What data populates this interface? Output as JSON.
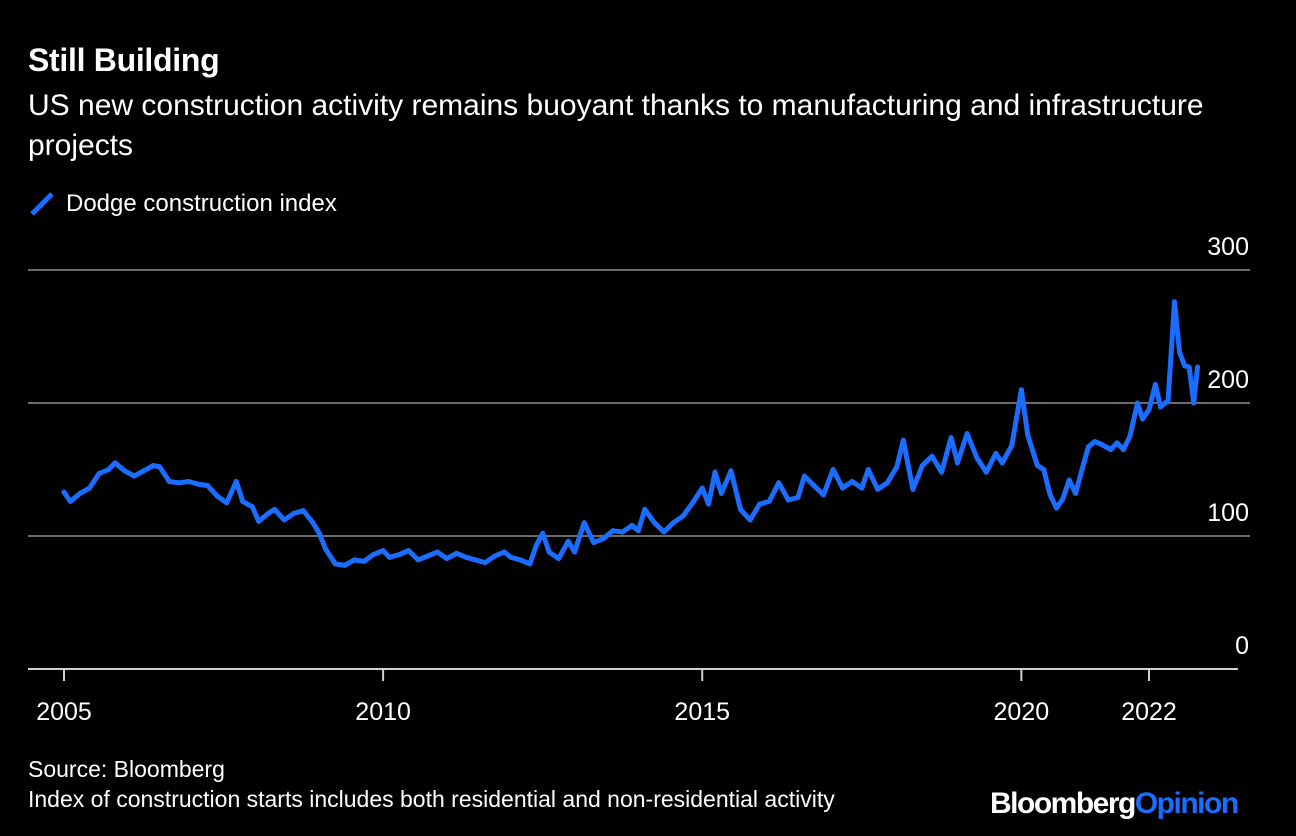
{
  "header": {
    "title": "Still Building",
    "subtitle": "US new construction activity remains buoyant thanks to manufacturing and infrastructure projects"
  },
  "footer": {
    "source": "Source: Bloomberg",
    "note": "Index of construction starts includes both residential and non-residential activity",
    "brand_primary": "Bloomberg",
    "brand_secondary": "Opinion"
  },
  "colors": {
    "background": "#000000",
    "series": "#1a6dff",
    "grid": "#6b6b6b",
    "text": "#ffffff"
  },
  "chart_data": {
    "type": "line",
    "title": "Still Building",
    "subtitle": "US new construction activity remains buoyant thanks to manufacturing and infrastructure projects",
    "xlabel": "",
    "ylabel": "",
    "x_ticks": [
      {
        "value": 2005,
        "label": "2005"
      },
      {
        "value": 2010,
        "label": "2010"
      },
      {
        "value": 2015,
        "label": "2015"
      },
      {
        "value": 2020,
        "label": "2020"
      },
      {
        "value": 2022,
        "label": "2022"
      }
    ],
    "y_ticks": [
      {
        "value": 0,
        "label": "0"
      },
      {
        "value": 100,
        "label": "100"
      },
      {
        "value": 200,
        "label": "200"
      },
      {
        "value": 300,
        "label": "300"
      }
    ],
    "xlim": [
      2004.4,
      2023.5
    ],
    "ylim": [
      0,
      300
    ],
    "grid": true,
    "legend_position": "top-left",
    "series": [
      {
        "name": "Dodge construction index",
        "color": "#1a6dff",
        "points": [
          [
            2005.0,
            133
          ],
          [
            2005.1,
            126
          ],
          [
            2005.25,
            132
          ],
          [
            2005.4,
            136
          ],
          [
            2005.55,
            147
          ],
          [
            2005.7,
            150
          ],
          [
            2005.8,
            155
          ],
          [
            2005.95,
            149
          ],
          [
            2006.1,
            145
          ],
          [
            2006.25,
            149
          ],
          [
            2006.4,
            153
          ],
          [
            2006.5,
            152
          ],
          [
            2006.65,
            141
          ],
          [
            2006.8,
            140
          ],
          [
            2006.95,
            141
          ],
          [
            2007.1,
            139
          ],
          [
            2007.25,
            138
          ],
          [
            2007.4,
            130
          ],
          [
            2007.55,
            125
          ],
          [
            2007.7,
            141
          ],
          [
            2007.8,
            126
          ],
          [
            2007.95,
            122
          ],
          [
            2008.05,
            111
          ],
          [
            2008.2,
            117
          ],
          [
            2008.3,
            120
          ],
          [
            2008.45,
            112
          ],
          [
            2008.6,
            117
          ],
          [
            2008.75,
            119
          ],
          [
            2008.9,
            110
          ],
          [
            2009.0,
            102
          ],
          [
            2009.1,
            90
          ],
          [
            2009.25,
            79
          ],
          [
            2009.4,
            78
          ],
          [
            2009.55,
            82
          ],
          [
            2009.7,
            81
          ],
          [
            2009.85,
            86
          ],
          [
            2010.0,
            89
          ],
          [
            2010.1,
            84
          ],
          [
            2010.25,
            86
          ],
          [
            2010.4,
            89
          ],
          [
            2010.55,
            82
          ],
          [
            2010.7,
            85
          ],
          [
            2010.85,
            88
          ],
          [
            2011.0,
            83
          ],
          [
            2011.15,
            87
          ],
          [
            2011.3,
            84
          ],
          [
            2011.45,
            82
          ],
          [
            2011.6,
            80
          ],
          [
            2011.75,
            85
          ],
          [
            2011.9,
            88
          ],
          [
            2012.0,
            84
          ],
          [
            2012.15,
            82
          ],
          [
            2012.3,
            79
          ],
          [
            2012.4,
            93
          ],
          [
            2012.5,
            102
          ],
          [
            2012.6,
            88
          ],
          [
            2012.75,
            83
          ],
          [
            2012.9,
            96
          ],
          [
            2013.0,
            88
          ],
          [
            2013.15,
            110
          ],
          [
            2013.3,
            95
          ],
          [
            2013.45,
            98
          ],
          [
            2013.6,
            104
          ],
          [
            2013.75,
            103
          ],
          [
            2013.9,
            108
          ],
          [
            2014.0,
            104
          ],
          [
            2014.1,
            120
          ],
          [
            2014.25,
            110
          ],
          [
            2014.4,
            103
          ],
          [
            2014.55,
            110
          ],
          [
            2014.7,
            115
          ],
          [
            2014.85,
            125
          ],
          [
            2015.0,
            136
          ],
          [
            2015.1,
            124
          ],
          [
            2015.2,
            148
          ],
          [
            2015.3,
            132
          ],
          [
            2015.45,
            149
          ],
          [
            2015.6,
            120
          ],
          [
            2015.75,
            112
          ],
          [
            2015.9,
            124
          ],
          [
            2016.05,
            126
          ],
          [
            2016.2,
            140
          ],
          [
            2016.35,
            127
          ],
          [
            2016.5,
            129
          ],
          [
            2016.6,
            145
          ],
          [
            2016.75,
            138
          ],
          [
            2016.9,
            131
          ],
          [
            2017.05,
            150
          ],
          [
            2017.2,
            136
          ],
          [
            2017.35,
            141
          ],
          [
            2017.5,
            136
          ],
          [
            2017.6,
            150
          ],
          [
            2017.75,
            135
          ],
          [
            2017.9,
            140
          ],
          [
            2018.05,
            152
          ],
          [
            2018.15,
            172
          ],
          [
            2018.3,
            135
          ],
          [
            2018.45,
            153
          ],
          [
            2018.6,
            160
          ],
          [
            2018.75,
            148
          ],
          [
            2018.9,
            174
          ],
          [
            2019.0,
            155
          ],
          [
            2019.15,
            177
          ],
          [
            2019.3,
            159
          ],
          [
            2019.45,
            148
          ],
          [
            2019.6,
            162
          ],
          [
            2019.7,
            155
          ],
          [
            2019.85,
            168
          ],
          [
            2020.0,
            210
          ],
          [
            2020.1,
            176
          ],
          [
            2020.25,
            153
          ],
          [
            2020.35,
            150
          ],
          [
            2020.45,
            131
          ],
          [
            2020.55,
            121
          ],
          [
            2020.65,
            128
          ],
          [
            2020.75,
            142
          ],
          [
            2020.85,
            132
          ],
          [
            2020.95,
            150
          ],
          [
            2021.05,
            167
          ],
          [
            2021.15,
            171
          ],
          [
            2021.25,
            169
          ],
          [
            2021.4,
            165
          ],
          [
            2021.5,
            170
          ],
          [
            2021.6,
            165
          ],
          [
            2021.7,
            175
          ],
          [
            2021.82,
            200
          ],
          [
            2021.9,
            188
          ],
          [
            2022.0,
            195
          ],
          [
            2022.1,
            214
          ],
          [
            2022.18,
            197
          ],
          [
            2022.3,
            202
          ],
          [
            2022.4,
            276
          ],
          [
            2022.48,
            238
          ],
          [
            2022.56,
            228
          ],
          [
            2022.63,
            227
          ],
          [
            2022.7,
            200
          ],
          [
            2022.76,
            227
          ]
        ]
      }
    ]
  }
}
